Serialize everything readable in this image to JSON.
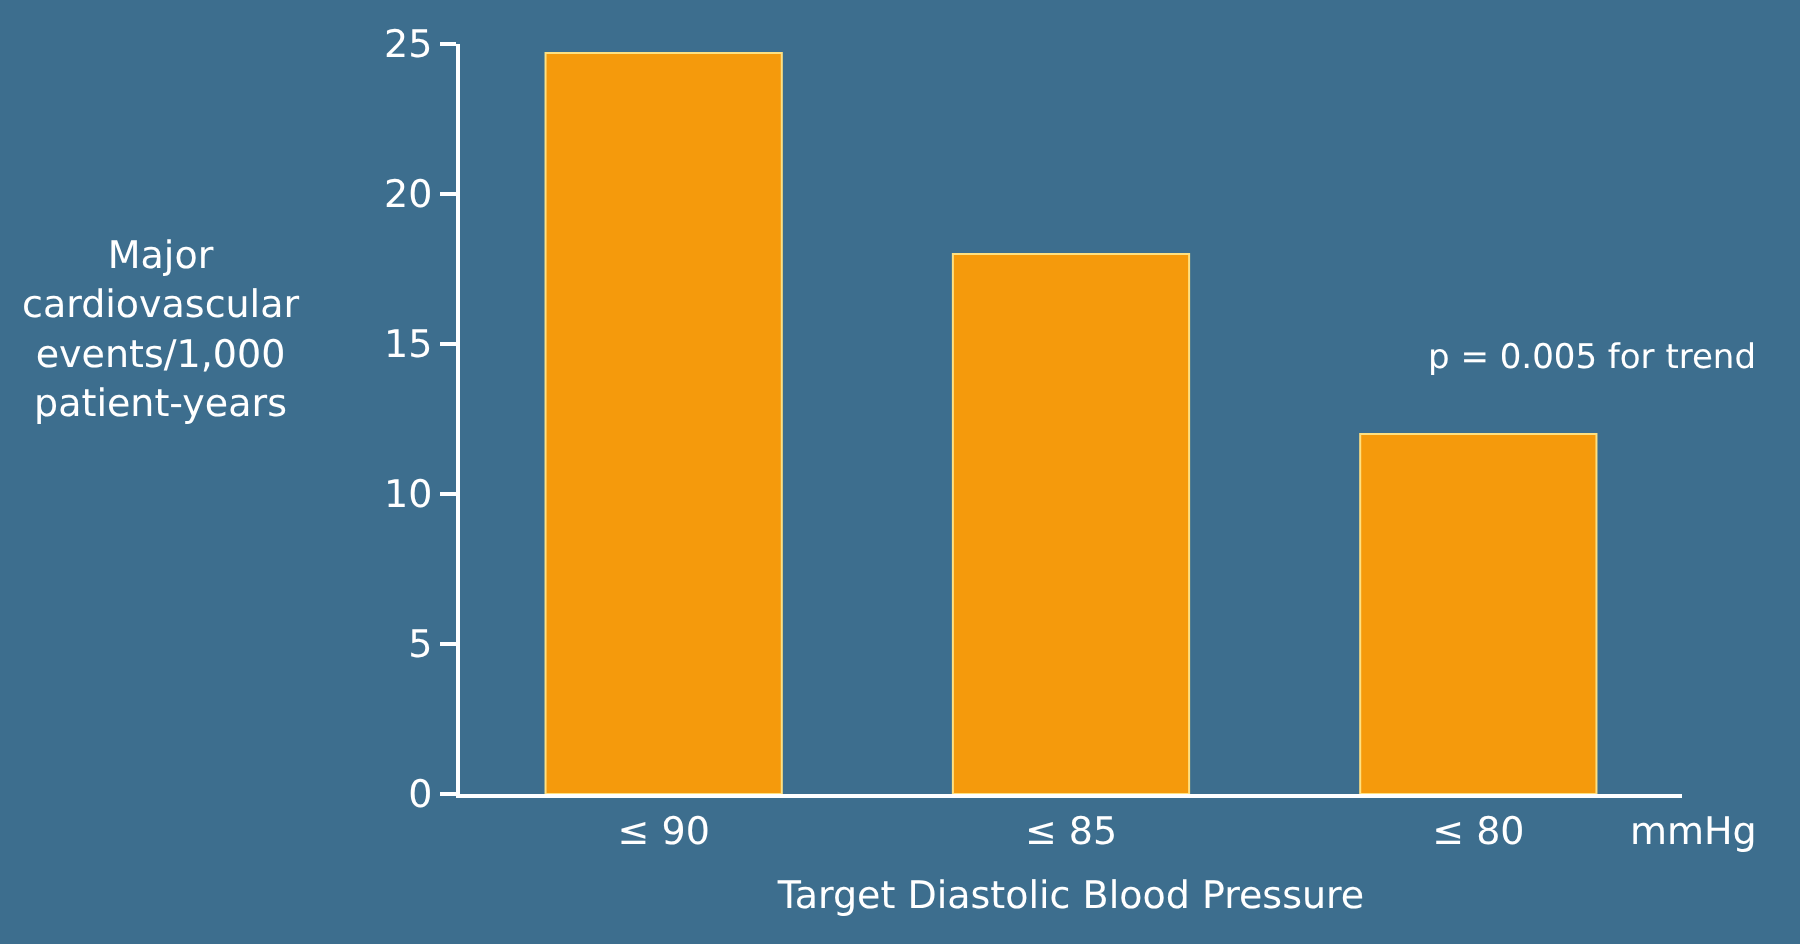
{
  "chart_data": {
    "type": "bar",
    "xlabel": "Target Diastolic Blood Pressure",
    "ylabel": "Major\ncardiovascular\nevents/1,000\npatient-years",
    "categories": [
      "≤ 90",
      "≤ 85",
      "≤ 80"
    ],
    "values": [
      24.7,
      18,
      12
    ],
    "color": "#f59a0c",
    "ylim": [
      0,
      25
    ],
    "yticks": [
      0,
      5,
      10,
      15,
      20,
      25
    ],
    "grid": false,
    "annotations": [
      "p = 0.005 for trend",
      "mmHg"
    ]
  }
}
